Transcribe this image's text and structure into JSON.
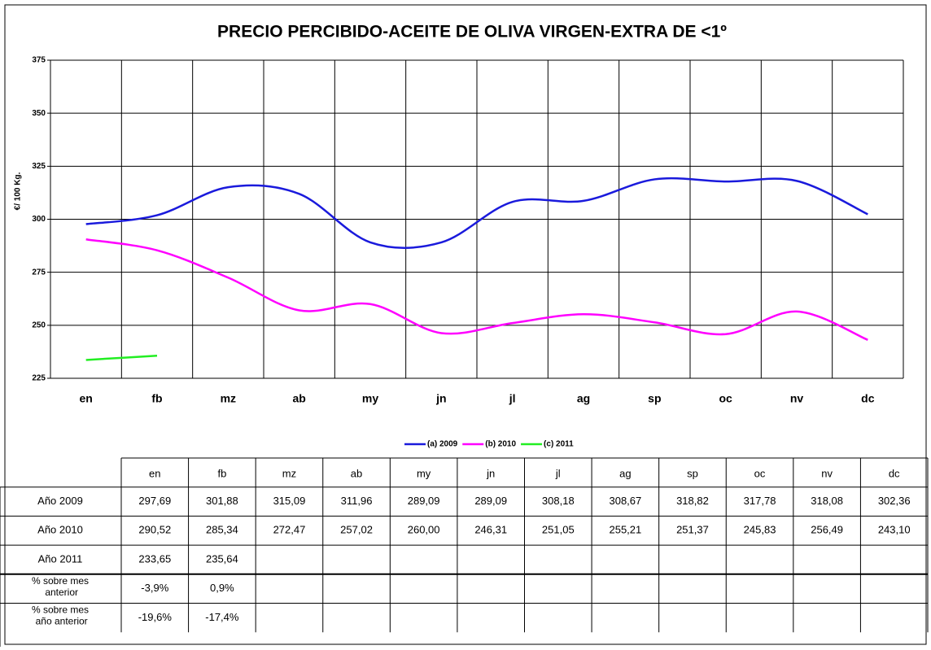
{
  "chart_data": {
    "type": "line",
    "title": "PRECIO PERCIBIDO-ACEITE DE OLIVA VIRGEN-EXTRA DE <1º",
    "y_label": "€/ 100 Kg.",
    "categories": [
      "en",
      "fb",
      "mz",
      "ab",
      "my",
      "jn",
      "jl",
      "ag",
      "sp",
      "oc",
      "nv",
      "dc"
    ],
    "ylim": [
      225,
      375
    ],
    "yticks": [
      225,
      250,
      275,
      300,
      325,
      350,
      375
    ],
    "grid": true,
    "smooth": true,
    "legend": "bottom",
    "series": [
      {
        "name": "(a) 2009",
        "row_label": "Año 2009",
        "color": "#1a1adc",
        "values": [
          297.69,
          301.88,
          315.09,
          311.96,
          289.09,
          289.09,
          308.18,
          308.67,
          318.82,
          317.78,
          318.08,
          302.36
        ],
        "value_labels": [
          "297,69",
          "301,88",
          "315,09",
          "311,96",
          "289,09",
          "289,09",
          "308,18",
          "308,67",
          "318,82",
          "317,78",
          "318,08",
          "302,36"
        ]
      },
      {
        "name": "(b) 2010",
        "row_label": "Año 2010",
        "color": "#ff00ff",
        "values": [
          290.52,
          285.34,
          272.47,
          257.02,
          260.0,
          246.31,
          251.05,
          255.21,
          251.37,
          245.83,
          256.49,
          243.1
        ],
        "value_labels": [
          "290,52",
          "285,34",
          "272,47",
          "257,02",
          "260,00",
          "246,31",
          "251,05",
          "255,21",
          "251,37",
          "245,83",
          "256,49",
          "243,10"
        ]
      },
      {
        "name": "(c) 2011",
        "row_label": "Año 2011",
        "color": "#22ee22",
        "values": [
          233.65,
          235.64,
          null,
          null,
          null,
          null,
          null,
          null,
          null,
          null,
          null,
          null
        ],
        "value_labels": [
          "233,65",
          "235,64",
          null,
          null,
          null,
          null,
          null,
          null,
          null,
          null,
          null,
          null
        ]
      }
    ],
    "table_rows": [
      {
        "label": "% sobre mes anterior",
        "cells": [
          "-3,9%",
          "0,9%",
          null,
          null,
          null,
          null,
          null,
          null,
          null,
          null,
          null,
          null
        ]
      },
      {
        "label": "% sobre mes año anterior",
        "cells": [
          "-19,6%",
          "-17,4%",
          null,
          null,
          null,
          null,
          null,
          null,
          null,
          null,
          null,
          null
        ]
      }
    ]
  }
}
